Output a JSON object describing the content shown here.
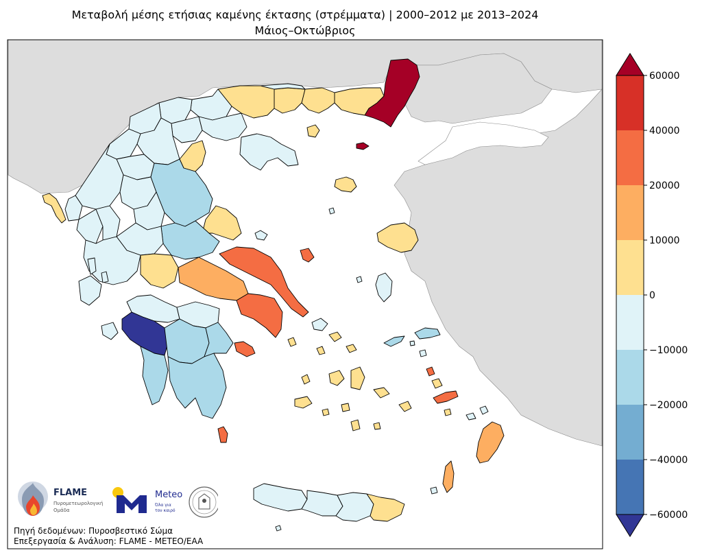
{
  "title": {
    "line1": "Μεταβολή μέσης ετήσιας καμένης έκτασης (στρέμματα) | 2000–2012 με 2013–2024",
    "line2": "Μάιος–Οκτώβριος"
  },
  "colorbar": {
    "ticks": [
      "60000",
      "40000",
      "20000",
      "10000",
      "0",
      "−10000",
      "−20000",
      "−40000",
      "−60000"
    ],
    "bands": [
      {
        "range": "40000 – 60000",
        "color": "#d73027"
      },
      {
        "range": "20000 – 40000",
        "color": "#f46d43"
      },
      {
        "range": "10000 – 20000",
        "color": "#fdae61"
      },
      {
        "range": "0 – 10000",
        "color": "#fee090"
      },
      {
        "range": "−10000 – 0",
        "color": "#e0f3f8"
      },
      {
        "range": "−20000 – −10000",
        "color": "#abd9e9"
      },
      {
        "range": "−40000 – −20000",
        "color": "#74add1"
      },
      {
        "range": "−60000 – −40000",
        "color": "#4575b4"
      }
    ],
    "over_color": "#a50026",
    "under_color": "#313695"
  },
  "map": {
    "land_color": "#dddddd",
    "sea_color": "#ffffff"
  },
  "logos": {
    "flame": "FLAME",
    "flame_sub1": "Πυρομετεωρολογική",
    "flame_sub2": "Ομάδα",
    "meteo": "Meteo",
    "meteo_sub1": "Όλα για",
    "meteo_sub2": "τον καιρό"
  },
  "credits": {
    "source": "Πηγή δεδομένων: Πυροσβεστικό Σώμα",
    "processing": "Επεξεργασία & Ανάλυση: FLAME - METEO/EAA"
  }
}
